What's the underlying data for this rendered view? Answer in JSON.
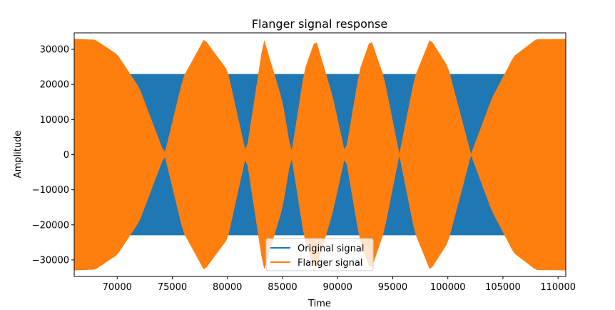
{
  "chart_data": {
    "type": "area",
    "title": "Flanger signal response",
    "xlabel": "Time",
    "ylabel": "Amplitude",
    "xlim": [
      66100,
      110700
    ],
    "ylim": [
      -34700,
      34700
    ],
    "x_ticks": [
      70000,
      75000,
      80000,
      85000,
      90000,
      95000,
      100000,
      105000,
      110000
    ],
    "y_ticks": [
      -30000,
      -20000,
      -10000,
      0,
      10000,
      20000,
      30000
    ],
    "grid": false,
    "legend": {
      "placement": "bottom-center"
    },
    "series": [
      {
        "name": "Original signal",
        "color": "#1f77b4",
        "envelope_x": [
          66100,
          110700
        ],
        "envelope_y": [
          22900,
          22900
        ]
      },
      {
        "name": "Flanger signal",
        "color": "#ff7f0e",
        "envelope_x": [
          66100,
          68000,
          70000,
          72000,
          74300,
          76000,
          77900,
          80000,
          81700,
          83300,
          85000,
          85800,
          87000,
          88000,
          89500,
          90700,
          92000,
          93000,
          94200,
          95600,
          97000,
          98400,
          100000,
          102100,
          104000,
          106000,
          108000,
          110700
        ],
        "envelope_y": [
          32900,
          32700,
          28500,
          19000,
          0,
          22000,
          32900,
          24000,
          0,
          32900,
          15000,
          0,
          24000,
          32900,
          17000,
          0,
          24000,
          32900,
          22000,
          0,
          22000,
          32900,
          25000,
          0,
          16000,
          28000,
          32800,
          32900
        ]
      }
    ]
  }
}
